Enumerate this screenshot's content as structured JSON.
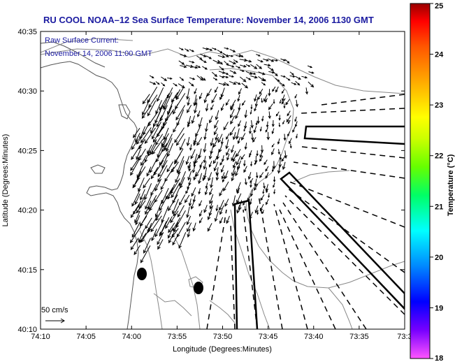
{
  "chart_data": {
    "type": "vector-field",
    "title": "RU COOL  NOAA–12  Sea Surface Temperature:  November 14, 2006 1130 GMT",
    "annotation": [
      "Raw Surface Current:",
      "November 14, 2006 11:00 GMT"
    ],
    "xlabel": "Longitude (Degrees:Minutes)",
    "ylabel": "Latitude (Degrees:Minutes)",
    "x_ticks": [
      "74:10",
      "74:05",
      "74:00",
      "73:55",
      "73:50",
      "73:45",
      "73:40",
      "73:35",
      "73:3"
    ],
    "y_ticks": [
      "40:35",
      "40:30",
      "40:25",
      "40:20",
      "40:15",
      "40:10"
    ],
    "xlim_minutes_west": [
      4450,
      4410
    ],
    "ylim_minutes_north": [
      2410,
      2435
    ],
    "scale_label": "50 cm/s",
    "colorbar": {
      "label": "Temperature (°C)",
      "ticks": [
        "25",
        "24",
        "23",
        "22",
        "21",
        "20",
        "19",
        "18"
      ],
      "range": [
        18,
        25
      ],
      "colors": [
        "#ff55ff",
        "#7700ff",
        "#0000ff",
        "#0088ff",
        "#00ffff",
        "#00ff66",
        "#66ff00",
        "#ccff00",
        "#ffff00",
        "#ffaa00",
        "#ff5500",
        "#ff0000",
        "#990000"
      ]
    },
    "current_field": {
      "lon_range_west": [
        4437,
        4424
      ],
      "lat_range_north": [
        2420,
        2433
      ],
      "typical_direction": "southwest",
      "max_speed_cm_s": 80
    }
  }
}
